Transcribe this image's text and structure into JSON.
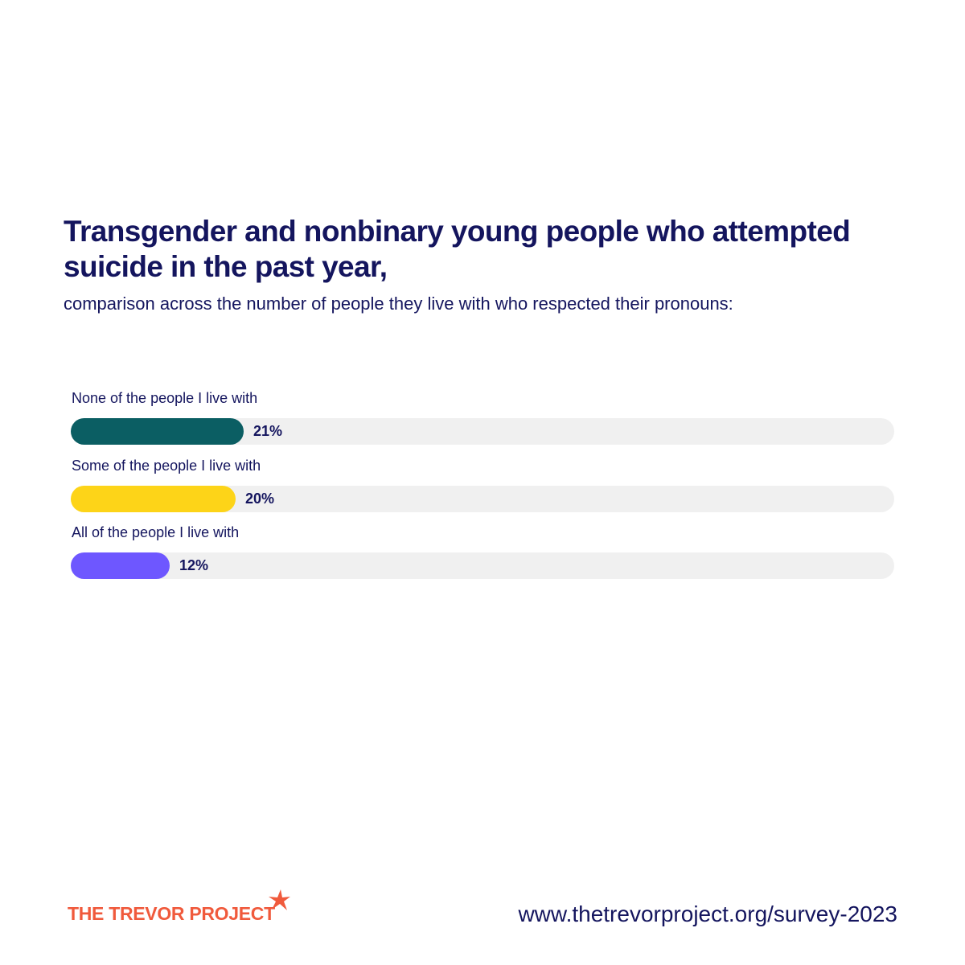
{
  "chart_data": {
    "type": "bar",
    "orientation": "horizontal",
    "title": "Transgender and nonbinary young people who attempted suicide in the past year,",
    "subtitle": "comparison across the number of people they live with who respected their pronouns:",
    "categories": [
      "None of the people I live with",
      "Some of the people I live with",
      "All of the people I live with"
    ],
    "values": [
      21,
      20,
      12
    ],
    "value_labels": [
      "21%",
      "20%",
      "12%"
    ],
    "colors": [
      "#0b5e63",
      "#fdd418",
      "#6e57ff"
    ],
    "track_color": "#f0f0f0",
    "xlim": [
      0,
      100
    ],
    "grid": false,
    "legend": "none"
  },
  "footer": {
    "logo_text": "THE TREVOR PROJECT",
    "logo_color": "#f05a3c",
    "url": "www.thetrevorproject.org/survey-2023"
  }
}
